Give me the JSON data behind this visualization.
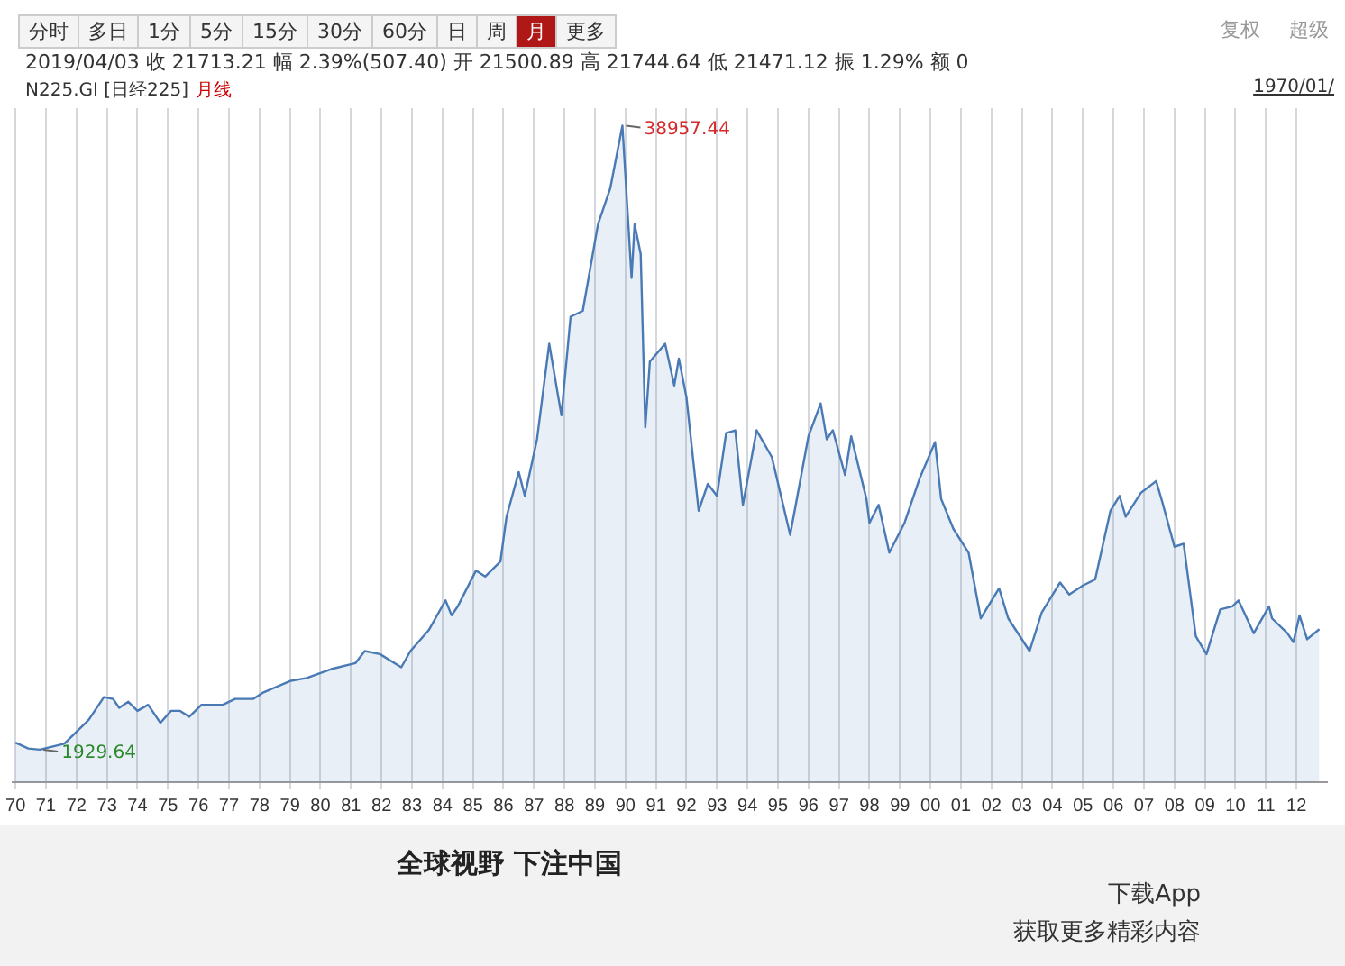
{
  "chart_data": {
    "type": "area",
    "title": "N225.GI [日经225]",
    "subtitle": "月线",
    "annotations": [
      "分时 多日 1分 5分 15分 30分 60分 日 周 月 更多",
      "复权 超级",
      "2019/04/03 收 21713.21 幅 2.39%(507.40) 开 21500.89 高 21744.64 低 21471.12 振 1.29% 额 0",
      "1970/01/",
      "全球视野 下注中国",
      "下载App",
      "获取更多精彩内容"
    ],
    "x": [
      1970.0,
      1970.42,
      1970.8,
      1971.6,
      1972.4,
      1972.9,
      1973.2,
      1973.4,
      1973.7,
      1974.0,
      1974.35,
      1974.75,
      1975.1,
      1975.4,
      1975.7,
      1976.1,
      1976.8,
      1977.2,
      1977.8,
      1978.1,
      1979.0,
      1979.55,
      1980.35,
      1981.15,
      1981.45,
      1981.95,
      1982.65,
      1982.95,
      1983.55,
      1984.1,
      1984.3,
      1984.5,
      1985.1,
      1985.4,
      1985.9,
      1986.1,
      1986.5,
      1986.7,
      1987.1,
      1987.5,
      1987.8,
      1987.9,
      1988.2,
      1988.6,
      1989.1,
      1989.5,
      1989.9,
      1990.2,
      1990.3,
      1990.5,
      1990.65,
      1990.8,
      1991.3,
      1991.6,
      1991.75,
      1992.0,
      1992.4,
      1992.7,
      1993.0,
      1993.3,
      1993.6,
      1993.85,
      1994.3,
      1994.8,
      1995.4,
      1996.0,
      1996.4,
      1996.6,
      1996.8,
      1997.2,
      1997.4,
      1997.9,
      1998.0,
      1998.3,
      1998.65,
      1999.15,
      1999.65,
      2000.15,
      2000.35,
      2000.75,
      2001.25,
      2001.65,
      2002.25,
      2002.55,
      2003.25,
      2003.65,
      2004.25,
      2004.55,
      2005.0,
      2005.4,
      2005.9,
      2006.2,
      2006.4,
      2006.9,
      2007.4,
      2007.6,
      2008.0,
      2008.3,
      2008.7,
      2009.05,
      2009.5,
      2009.9,
      2010.1,
      2010.6,
      2011.1,
      2011.2,
      2011.7,
      2011.9,
      2012.1,
      2012.35,
      2012.75
    ],
    "values": [
      2350,
      2000,
      1929.64,
      2280,
      3700,
      5050,
      4940,
      4410,
      4770,
      4230,
      4590,
      3520,
      4230,
      4230,
      3880,
      4590,
      4590,
      4940,
      4940,
      5300,
      6000,
      6180,
      6710,
      7070,
      7780,
      7600,
      6820,
      7780,
      9020,
      10790,
      9900,
      10430,
      12560,
      12200,
      13090,
      15750,
      18400,
      16990,
      20350,
      26020,
      22830,
      21770,
      27620,
      27970,
      33110,
      35230,
      38957.44,
      29920,
      33110,
      31340,
      21060,
      24960,
      26020,
      23540,
      25140,
      22830,
      16100,
      17700,
      16990,
      20710,
      20880,
      16460,
      20880,
      19290,
      14680,
      20530,
      22480,
      20350,
      20880,
      18230,
      20530,
      16810,
      15390,
      16460,
      13620,
      15390,
      18050,
      20180,
      16810,
      15040,
      13620,
      9720,
      11500,
      9720,
      7780,
      10080,
      11850,
      11140,
      11670,
      12030,
      16100,
      16990,
      15750,
      17170,
      17870,
      16630,
      13970,
      14150,
      8660,
      7600,
      10250,
      10430,
      10790,
      8840,
      10430,
      9720,
      8840,
      8310,
      9900,
      8480,
      9080
    ],
    "value_labels": [
      null,
      null,
      "1929.64",
      null,
      null,
      null,
      null,
      null,
      null,
      null,
      null,
      null,
      null,
      null,
      null,
      null,
      null,
      null,
      null,
      null,
      null,
      null,
      null,
      null,
      null,
      null,
      null,
      null,
      null,
      null,
      null,
      null,
      null,
      null,
      null,
      null,
      null,
      null,
      null,
      null,
      null,
      null,
      null,
      null,
      null,
      null,
      "38957.44",
      null,
      null,
      null,
      null,
      null,
      null,
      null,
      null,
      null,
      null,
      null,
      null,
      null,
      null,
      null,
      null,
      null,
      null,
      null,
      null,
      null,
      null,
      null,
      null,
      null,
      null,
      null,
      null,
      null,
      null,
      null,
      null,
      null,
      null,
      null,
      null,
      null,
      null,
      null,
      null,
      null,
      null,
      null,
      null,
      null,
      null,
      null,
      null,
      null,
      null,
      null,
      null,
      null,
      null,
      null,
      null,
      null,
      null,
      null,
      null,
      null,
      null,
      null,
      null
    ],
    "color": "#4a7ab5",
    "xlim": [
      1969.9,
      2013
    ],
    "xticks": [
      {
        "value": 1970,
        "label": "70"
      },
      {
        "value": 1971,
        "label": "71"
      },
      {
        "value": 1972,
        "label": "72"
      },
      {
        "value": 1973,
        "label": "73"
      },
      {
        "value": 1974,
        "label": "74"
      },
      {
        "value": 1975,
        "label": "75"
      },
      {
        "value": 1976,
        "label": "76"
      },
      {
        "value": 1977,
        "label": "77"
      },
      {
        "value": 1978,
        "label": "78"
      },
      {
        "value": 1979,
        "label": "79"
      },
      {
        "value": 1980,
        "label": "80"
      },
      {
        "value": 1981,
        "label": "81"
      },
      {
        "value": 1982,
        "label": "82"
      },
      {
        "value": 1983,
        "label": "83"
      },
      {
        "value": 1984,
        "label": "84"
      },
      {
        "value": 1985,
        "label": "85"
      },
      {
        "value": 1986,
        "label": "86"
      },
      {
        "value": 1987,
        "label": "87"
      },
      {
        "value": 1988,
        "label": "88"
      },
      {
        "value": 1989,
        "label": "89"
      },
      {
        "value": 1990,
        "label": "90"
      },
      {
        "value": 1991,
        "label": "91"
      },
      {
        "value": 1992,
        "label": "92"
      },
      {
        "value": 1993,
        "label": "93"
      },
      {
        "value": 1994,
        "label": "94"
      },
      {
        "value": 1995,
        "label": "95"
      },
      {
        "value": 1996,
        "label": "96"
      },
      {
        "value": 1997,
        "label": "97"
      },
      {
        "value": 1998,
        "label": "98"
      },
      {
        "value": 1999,
        "label": "99"
      },
      {
        "value": 2000,
        "label": "00"
      },
      {
        "value": 2001,
        "label": "01"
      },
      {
        "value": 2002,
        "label": "02"
      },
      {
        "value": 2003,
        "label": "03"
      },
      {
        "value": 2004,
        "label": "04"
      },
      {
        "value": 2005,
        "label": "05"
      },
      {
        "value": 2006,
        "label": "06"
      },
      {
        "value": 2007,
        "label": "07"
      },
      {
        "value": 2008,
        "label": "08"
      },
      {
        "value": 2009,
        "label": "09"
      },
      {
        "value": 2010,
        "label": "10"
      },
      {
        "value": 2011,
        "label": "11"
      },
      {
        "value": 2012,
        "label": "12"
      }
    ],
    "grid": "x",
    "legend": false,
    "marker": "none",
    "line_style": "solid"
  }
}
